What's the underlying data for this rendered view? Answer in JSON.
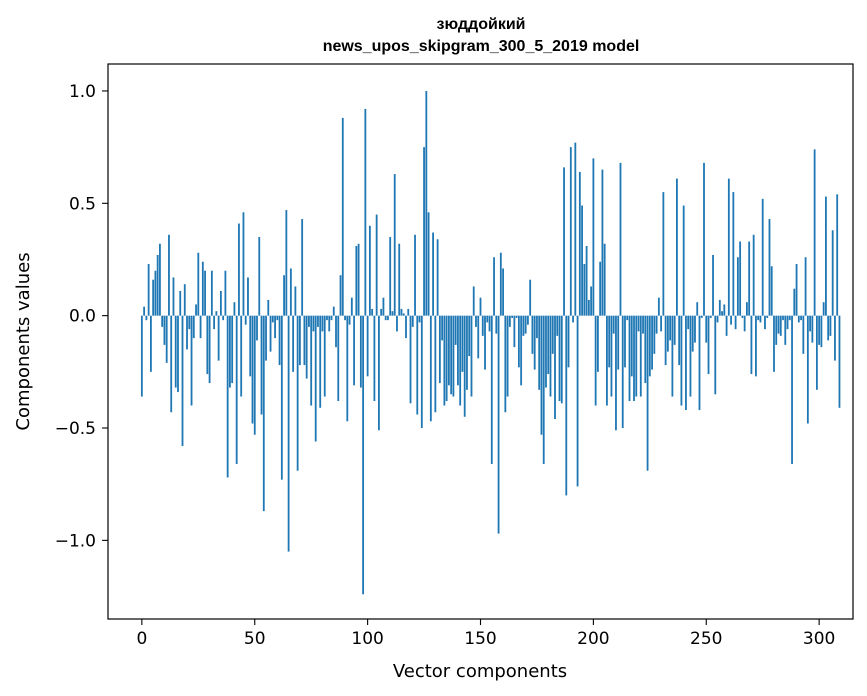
{
  "chart_data": {
    "type": "bar",
    "title": "зюддойкий",
    "subtitle": "news_upos_skipgram_300_5_2019 model",
    "xlabel": "Vector components",
    "ylabel": "Components values",
    "xlim": [
      -15,
      315
    ],
    "ylim": [
      -1.35,
      1.12
    ],
    "xticks": [
      0,
      50,
      100,
      150,
      200,
      250,
      300
    ],
    "xtick_labels": [
      "0",
      "50",
      "100",
      "150",
      "200",
      "250",
      "300"
    ],
    "yticks": [
      -1.0,
      -0.5,
      0.0,
      0.5,
      1.0
    ],
    "ytick_labels": [
      "−1.0",
      "−0.5",
      "0.0",
      "0.5",
      "1.0"
    ],
    "grid": false,
    "legend": "none",
    "bar_color": "#1f77b4",
    "series": [
      {
        "values": [
          -0.36,
          0.04,
          -0.02,
          0.23,
          -0.25,
          0.16,
          0.2,
          0.27,
          0.32,
          -0.05,
          -0.13,
          -0.21,
          0.36,
          -0.43,
          0.17,
          -0.32,
          -0.34,
          0.11,
          -0.58,
          0.14,
          -0.15,
          -0.06,
          -0.4,
          -0.1,
          0.05,
          0.28,
          -0.1,
          0.24,
          0.2,
          -0.26,
          -0.3,
          0.2,
          -0.06,
          0.02,
          -0.2,
          0.11,
          -0.02,
          0.2,
          -0.72,
          -0.32,
          -0.3,
          0.06,
          -0.66,
          0.41,
          -0.36,
          0.46,
          -0.04,
          0.17,
          -0.27,
          -0.48,
          -0.53,
          -0.11,
          0.35,
          -0.44,
          -0.87,
          -0.2,
          0.07,
          -0.16,
          -0.03,
          -0.1,
          -0.02,
          -0.22,
          -0.73,
          0.18,
          0.47,
          -1.05,
          0.21,
          -0.25,
          0.13,
          -0.69,
          -0.22,
          0.43,
          -0.22,
          -0.28,
          -0.05,
          -0.4,
          -0.07,
          -0.56,
          -0.05,
          -0.41,
          -0.07,
          -0.36,
          -0.02,
          -0.07,
          -0.02,
          0.04,
          -0.14,
          -0.38,
          0.18,
          0.88,
          -0.02,
          -0.47,
          -0.04,
          0.08,
          -0.31,
          0.31,
          0.32,
          -0.32,
          -1.24,
          0.92,
          -0.27,
          0.4,
          0.03,
          -0.38,
          0.45,
          -0.51,
          0.03,
          0.08,
          -0.02,
          -0.02,
          0.35,
          0.02,
          0.63,
          -0.07,
          0.32,
          0.03,
          0.01,
          -0.1,
          0.03,
          -0.39,
          -0.05,
          0.36,
          -0.44,
          -0.03,
          -0.5,
          0.75,
          1.0,
          0.46,
          -0.47,
          0.37,
          -0.43,
          0.34,
          -0.3,
          -0.11,
          -0.4,
          -0.38,
          -0.31,
          -0.35,
          -0.36,
          -0.13,
          -0.31,
          -0.4,
          -0.25,
          -0.45,
          -0.33,
          -0.18,
          -0.36,
          0.13,
          -0.05,
          -0.19,
          0.08,
          -0.09,
          -0.24,
          -0.03,
          -0.07,
          -0.66,
          0.26,
          -0.08,
          -0.97,
          0.28,
          0.21,
          -0.43,
          -0.36,
          -0.05,
          -0.01,
          -0.14,
          -0.01,
          -0.23,
          -0.31,
          -0.09,
          -0.08,
          -0.04,
          0.16,
          -0.17,
          -0.24,
          -0.1,
          -0.33,
          -0.53,
          -0.66,
          -0.32,
          -0.26,
          -0.36,
          -0.17,
          -0.46,
          -0.09,
          -0.38,
          -0.39,
          0.66,
          -0.8,
          -0.23,
          0.75,
          -0.03,
          0.77,
          -0.76,
          0.64,
          0.49,
          0.23,
          0.31,
          0.07,
          0.13,
          0.7,
          -0.4,
          -0.25,
          0.24,
          0.65,
          0.32,
          -0.4,
          -0.23,
          -0.36,
          -0.08,
          -0.51,
          -0.24,
          0.68,
          -0.5,
          -0.23,
          -0.02,
          -0.38,
          -0.27,
          -0.38,
          -0.36,
          -0.07,
          -0.36,
          -0.08,
          -0.3,
          -0.69,
          -0.27,
          -0.24,
          -0.17,
          -0.08,
          0.08,
          -0.07,
          0.55,
          -0.22,
          -0.16,
          -0.11,
          -0.36,
          -0.13,
          0.61,
          -0.22,
          -0.4,
          0.49,
          -0.42,
          -0.06,
          -0.36,
          -0.16,
          -0.12,
          0.06,
          -0.42,
          -0.01,
          0.68,
          -0.12,
          -0.26,
          -0.01,
          0.27,
          -0.35,
          -0.03,
          0.07,
          0.02,
          0.05,
          -0.09,
          0.61,
          -0.04,
          0.55,
          -0.06,
          0.26,
          0.33,
          -0.01,
          -0.07,
          0.06,
          0.33,
          -0.26,
          0.36,
          -0.27,
          -0.02,
          -0.03,
          0.52,
          -0.06,
          -0.01,
          0.43,
          0.22,
          -0.25,
          -0.13,
          -0.08,
          -0.09,
          -0.02,
          -0.13,
          -0.06,
          -0.02,
          -0.66,
          0.12,
          0.23,
          -0.03,
          -0.02,
          -0.17,
          0.26,
          -0.48,
          -0.07,
          -0.12,
          0.74,
          -0.33,
          -0.13,
          -0.14,
          0.06,
          0.53,
          -0.11,
          -0.09,
          0.38,
          -0.2,
          0.54,
          -0.41
        ]
      }
    ]
  }
}
